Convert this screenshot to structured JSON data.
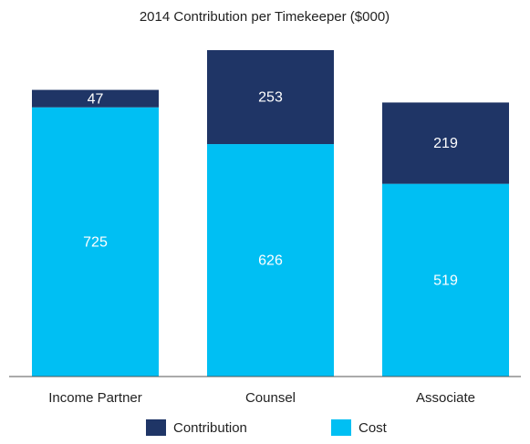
{
  "chart_data": {
    "type": "stacked_bar",
    "title": "2014 Contribution per Timekeeper ($000)",
    "categories": [
      "Income Partner",
      "Counsel",
      "Associate"
    ],
    "series": [
      {
        "name": "Contribution",
        "color": "#1f3566",
        "values": [
          47,
          253,
          219
        ]
      },
      {
        "name": "Cost",
        "color": "#00bff3",
        "values": [
          725,
          626,
          519
        ]
      }
    ]
  }
}
